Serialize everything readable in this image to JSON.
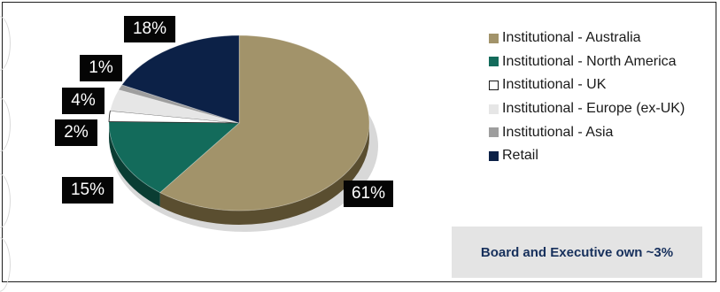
{
  "chart_data": {
    "type": "pie",
    "title": "",
    "series": [
      {
        "name": "Institutional - Australia",
        "value": 61,
        "label": "61%",
        "color": "#a2936a",
        "side": "#5a4e30"
      },
      {
        "name": "Institutional - North America",
        "value": 15,
        "label": "15%",
        "color": "#136b5b",
        "side": "#0a3d33"
      },
      {
        "name": "Institutional - UK",
        "value": 2,
        "label": "2%",
        "color": "#ffffff",
        "side": "#cfcfcf"
      },
      {
        "name": "Institutional - Europe (ex-UK)",
        "value": 4,
        "label": "4%",
        "color": "#e6e6e6",
        "side": "#b9b9b9"
      },
      {
        "name": "Institutional - Asia",
        "value": 1,
        "label": "1%",
        "color": "#9e9e9e",
        "side": "#6e6e6e"
      },
      {
        "name": "Retail",
        "value": 18,
        "label": "18%",
        "color": "#0c2147",
        "side": "#06122a"
      }
    ],
    "legend_position": "right"
  },
  "note": {
    "text": "Board and Executive own ~3%"
  }
}
